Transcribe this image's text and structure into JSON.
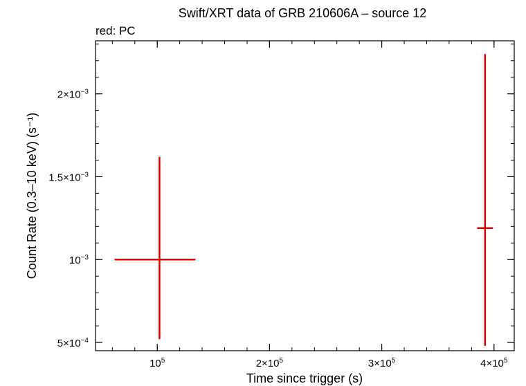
{
  "chart_data": {
    "type": "scatter",
    "title": "Swift/XRT data of GRB 210606A – source 12",
    "subtitle": "red: PC",
    "xlabel": "Time since trigger (s)",
    "ylabel": "Count Rate (0.3–10 keV) (s⁻¹)",
    "xlim": [
      45000,
      418000
    ],
    "ylim": [
      0.00045,
      0.00232
    ],
    "x_ticks": [
      {
        "value": 100000,
        "mantissa": "",
        "exp": "5"
      },
      {
        "value": 200000,
        "mantissa": "2×",
        "exp": "5"
      },
      {
        "value": 300000,
        "mantissa": "3×",
        "exp": "5"
      },
      {
        "value": 400000,
        "mantissa": "4×",
        "exp": "5"
      }
    ],
    "x_minor_step": 20000,
    "y_ticks": [
      {
        "value": 0.0005,
        "mantissa": "5×",
        "exp": "−4"
      },
      {
        "value": 0.001,
        "mantissa": "",
        "exp": "−3"
      },
      {
        "value": 0.0015,
        "mantissa": "1.5×",
        "exp": "−3"
      },
      {
        "value": 0.002,
        "mantissa": "2×",
        "exp": "−3"
      }
    ],
    "y_minor_step": 0.0001,
    "color": "#dd0000",
    "series": [
      {
        "points": [
          {
            "x": 102000,
            "xerr_lo": 40000,
            "xerr_hi": 32000,
            "y": 0.001,
            "yerr_lo": 0.00048,
            "yerr_hi": 0.00062
          },
          {
            "x": 392000,
            "xerr_lo": 7000,
            "xerr_hi": 7000,
            "y": 0.00119,
            "yerr_lo": 0.00071,
            "yerr_hi": 0.00105
          }
        ]
      }
    ]
  }
}
